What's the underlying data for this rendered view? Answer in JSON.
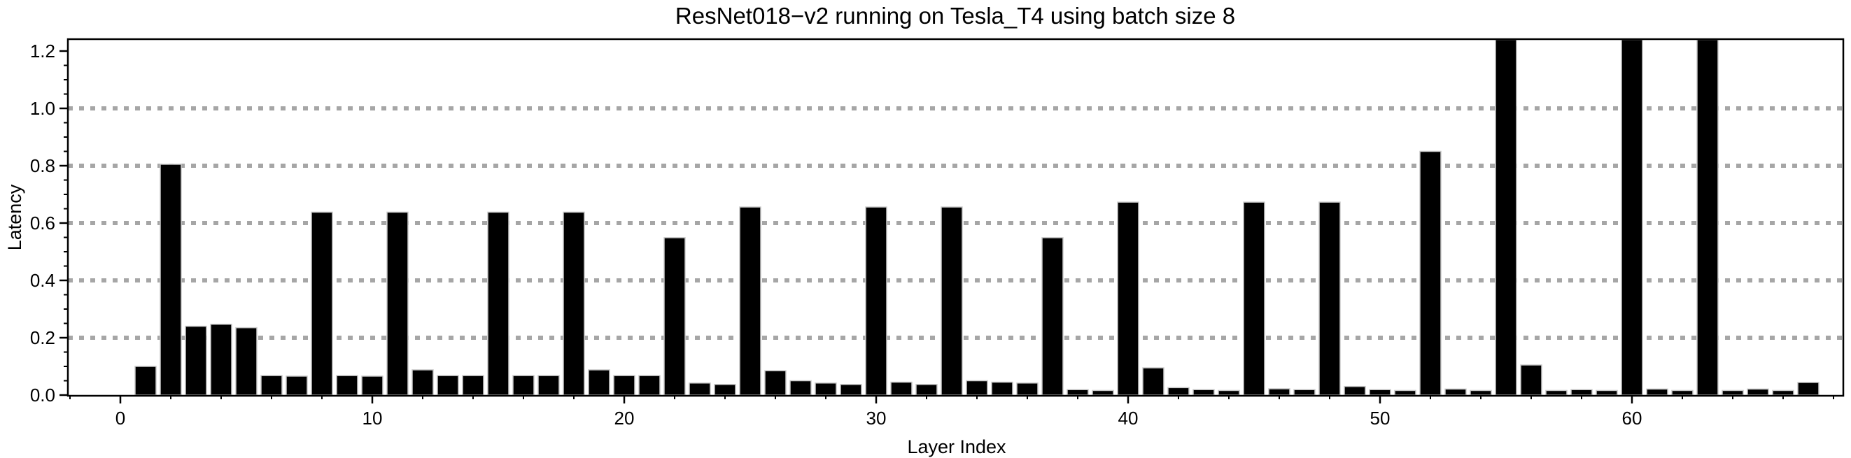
{
  "chart_data": {
    "type": "bar",
    "title": "ResNet018−v2 running on Tesla_T4 using batch size 8",
    "xlabel": "Layer Index",
    "ylabel": "Latency",
    "bar_color": "#000000",
    "bar_edge_color": "#c8c8c8",
    "grid_color": "#a6a6a6",
    "axis_color": "#000000",
    "grid_style": "dotted horizontal lines at major y ticks 0.2 to 1.0",
    "xlim": [
      -2.1,
      68.4
    ],
    "ylim": [
      0,
      1.24
    ],
    "x_tick_values": [
      0,
      10,
      20,
      30,
      40,
      50,
      60
    ],
    "x_tick_labels": [
      "0",
      "10",
      "20",
      "30",
      "40",
      "50",
      "60"
    ],
    "y_tick_values": [
      0.0,
      0.2,
      0.4,
      0.6,
      0.8,
      1.0,
      1.2
    ],
    "y_tick_labels": [
      "0.0",
      "0.2",
      "0.4",
      "0.6",
      "0.8",
      "1.0",
      "1.2"
    ],
    "gridline_values": [
      0.2,
      0.4,
      0.6,
      0.8,
      1.0
    ],
    "x": [
      1,
      2,
      3,
      4,
      5,
      6,
      7,
      8,
      9,
      10,
      11,
      12,
      13,
      14,
      15,
      16,
      17,
      18,
      19,
      20,
      21,
      22,
      23,
      24,
      25,
      26,
      27,
      28,
      29,
      30,
      31,
      32,
      33,
      34,
      35,
      36,
      37,
      38,
      39,
      40,
      41,
      42,
      43,
      44,
      45,
      46,
      47,
      48,
      49,
      50,
      51,
      52,
      53,
      54,
      55,
      56,
      57,
      58,
      59,
      60,
      61,
      62,
      63,
      64,
      65,
      66,
      67
    ],
    "values": [
      0.1,
      0.805,
      0.24,
      0.247,
      0.235,
      0.068,
      0.066,
      0.638,
      0.068,
      0.066,
      0.638,
      0.088,
      0.068,
      0.068,
      0.638,
      0.068,
      0.068,
      0.638,
      0.088,
      0.068,
      0.068,
      0.549,
      0.042,
      0.037,
      0.656,
      0.085,
      0.05,
      0.042,
      0.037,
      0.656,
      0.045,
      0.037,
      0.656,
      0.05,
      0.045,
      0.042,
      0.549,
      0.019,
      0.016,
      0.673,
      0.095,
      0.026,
      0.019,
      0.016,
      0.673,
      0.022,
      0.019,
      0.673,
      0.03,
      0.019,
      0.016,
      0.85,
      0.021,
      0.016,
      1.24,
      0.105,
      0.016,
      0.019,
      0.016,
      1.24,
      0.021,
      0.016,
      1.24,
      0.016,
      0.021,
      0.016,
      0.044
    ],
    "clipped_bars_x": [
      55,
      60,
      63
    ],
    "legend": "none"
  }
}
